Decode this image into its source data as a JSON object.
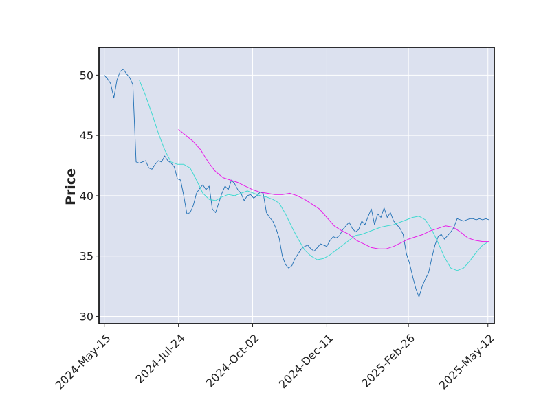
{
  "chart_data": {
    "type": "line",
    "title": "",
    "xlabel": "",
    "ylabel": "Price",
    "grid": true,
    "legend": "none",
    "xlim": [
      "2024-05-10",
      "2025-05-18"
    ],
    "ylim": [
      29.4,
      52.3
    ],
    "x_ticks": [
      "2024-May-15",
      "2024-Jul-24",
      "2024-Oct-02",
      "2024-Dec-11",
      "2025-Feb-26",
      "2025-May-12"
    ],
    "y_ticks": [
      30,
      35,
      40,
      45,
      50
    ],
    "colors": {
      "background": "#dce1ef",
      "grid": "#ffffff",
      "price": "#1f6fb4",
      "ma_short": "#40d9d0",
      "ma_long": "#e81ce8"
    },
    "series": [
      {
        "key": "price",
        "x": [
          "2024-05-15",
          "2024-05-18",
          "2024-05-21",
          "2024-05-24",
          "2024-05-27",
          "2024-05-30",
          "2024-06-02",
          "2024-06-05",
          "2024-06-08",
          "2024-06-11",
          "2024-06-14",
          "2024-06-17",
          "2024-06-20",
          "2024-06-23",
          "2024-06-26",
          "2024-06-29",
          "2024-07-02",
          "2024-07-05",
          "2024-07-08",
          "2024-07-11",
          "2024-07-14",
          "2024-07-17",
          "2024-07-20",
          "2024-07-23",
          "2024-07-26",
          "2024-07-29",
          "2024-08-01",
          "2024-08-04",
          "2024-08-07",
          "2024-08-10",
          "2024-08-13",
          "2024-08-16",
          "2024-08-19",
          "2024-08-22",
          "2024-08-25",
          "2024-08-28",
          "2024-08-31",
          "2024-09-03",
          "2024-09-06",
          "2024-09-09",
          "2024-09-12",
          "2024-09-15",
          "2024-09-18",
          "2024-09-21",
          "2024-09-24",
          "2024-09-27",
          "2024-09-30",
          "2024-10-03",
          "2024-10-06",
          "2024-10-09",
          "2024-10-12",
          "2024-10-15",
          "2024-10-18",
          "2024-10-21",
          "2024-10-24",
          "2024-10-27",
          "2024-10-30",
          "2024-11-02",
          "2024-11-05",
          "2024-11-08",
          "2024-11-11",
          "2024-11-14",
          "2024-11-17",
          "2024-11-20",
          "2024-11-23",
          "2024-11-26",
          "2024-11-29",
          "2024-12-02",
          "2024-12-05",
          "2024-12-08",
          "2024-12-11",
          "2024-12-14",
          "2024-12-17",
          "2024-12-20",
          "2024-12-23",
          "2024-12-26",
          "2024-12-29",
          "2025-01-01",
          "2025-01-04",
          "2025-01-07",
          "2025-01-10",
          "2025-01-13",
          "2025-01-16",
          "2025-01-19",
          "2025-01-22",
          "2025-01-25",
          "2025-01-28",
          "2025-01-31",
          "2025-02-03",
          "2025-02-06",
          "2025-02-09",
          "2025-02-12",
          "2025-02-15",
          "2025-02-18",
          "2025-02-21",
          "2025-02-24",
          "2025-02-27",
          "2025-03-02",
          "2025-03-05",
          "2025-03-08",
          "2025-03-11",
          "2025-03-14",
          "2025-03-17",
          "2025-03-20",
          "2025-03-23",
          "2025-03-26",
          "2025-03-29",
          "2025-04-01",
          "2025-04-04",
          "2025-04-07",
          "2025-04-10",
          "2025-04-13",
          "2025-04-16",
          "2025-04-19",
          "2025-04-22",
          "2025-04-25",
          "2025-04-28",
          "2025-05-01",
          "2025-05-04",
          "2025-05-07",
          "2025-05-10",
          "2025-05-13"
        ],
        "values": [
          50.0,
          49.7,
          49.3,
          48.1,
          49.6,
          50.3,
          50.5,
          50.1,
          49.8,
          49.2,
          42.8,
          42.7,
          42.8,
          42.9,
          42.3,
          42.2,
          42.6,
          42.9,
          42.8,
          43.3,
          42.9,
          42.7,
          42.4,
          41.4,
          41.3,
          40.0,
          38.5,
          38.6,
          39.2,
          40.2,
          40.6,
          40.9,
          40.5,
          40.8,
          38.9,
          38.6,
          39.4,
          40.2,
          40.8,
          40.5,
          41.3,
          41.0,
          40.5,
          40.2,
          39.6,
          40.0,
          40.1,
          39.8,
          40.0,
          40.3,
          40.2,
          38.6,
          38.2,
          37.9,
          37.3,
          36.5,
          35.0,
          34.3,
          34.0,
          34.2,
          34.8,
          35.2,
          35.6,
          35.8,
          35.9,
          35.6,
          35.4,
          35.7,
          36.0,
          35.9,
          35.8,
          36.3,
          36.6,
          36.5,
          36.7,
          37.2,
          37.5,
          37.8,
          37.3,
          37.0,
          37.2,
          37.9,
          37.6,
          38.3,
          38.9,
          37.6,
          38.5,
          38.2,
          39.0,
          38.2,
          38.6,
          37.9,
          37.6,
          37.3,
          36.8,
          35.2,
          34.4,
          33.3,
          32.3,
          31.6,
          32.5,
          33.1,
          33.6,
          34.8,
          35.9,
          36.6,
          36.8,
          36.4,
          36.7,
          37.0,
          37.4,
          38.1,
          38.0,
          37.9,
          38.0,
          38.1,
          38.1,
          38.0,
          38.1,
          38.0,
          38.1,
          38.0
        ]
      },
      {
        "key": "ma_short",
        "x": [
          "2024-06-17",
          "2024-06-23",
          "2024-06-29",
          "2024-07-05",
          "2024-07-11",
          "2024-07-17",
          "2024-07-23",
          "2024-07-29",
          "2024-08-04",
          "2024-08-10",
          "2024-08-16",
          "2024-08-22",
          "2024-08-28",
          "2024-09-03",
          "2024-09-09",
          "2024-09-15",
          "2024-09-21",
          "2024-09-27",
          "2024-10-03",
          "2024-10-09",
          "2024-10-15",
          "2024-10-21",
          "2024-10-27",
          "2024-11-02",
          "2024-11-08",
          "2024-11-14",
          "2024-11-20",
          "2024-11-26",
          "2024-12-02",
          "2024-12-08",
          "2024-12-14",
          "2024-12-20",
          "2024-12-26",
          "2025-01-01",
          "2025-01-07",
          "2025-01-13",
          "2025-01-19",
          "2025-01-25",
          "2025-01-31",
          "2025-02-06",
          "2025-02-12",
          "2025-02-18",
          "2025-02-24",
          "2025-03-02",
          "2025-03-08",
          "2025-03-14",
          "2025-03-20",
          "2025-03-26",
          "2025-04-01",
          "2025-04-07",
          "2025-04-13",
          "2025-04-19",
          "2025-04-25",
          "2025-05-01",
          "2025-05-07",
          "2025-05-13"
        ],
        "values": [
          49.6,
          48.3,
          46.8,
          45.2,
          43.8,
          42.8,
          42.6,
          42.6,
          42.3,
          41.3,
          40.2,
          39.7,
          39.6,
          39.9,
          40.1,
          40.0,
          40.2,
          40.4,
          40.2,
          40.0,
          39.9,
          39.7,
          39.4,
          38.5,
          37.4,
          36.4,
          35.5,
          35.0,
          34.7,
          34.8,
          35.1,
          35.5,
          35.9,
          36.3,
          36.7,
          36.8,
          37.0,
          37.2,
          37.4,
          37.5,
          37.6,
          37.8,
          38.0,
          38.2,
          38.3,
          38.0,
          37.2,
          36.1,
          34.9,
          34.0,
          33.8,
          34.0,
          34.6,
          35.3,
          35.9,
          36.2
        ]
      },
      {
        "key": "ma_long",
        "x": [
          "2024-07-24",
          "2024-07-31",
          "2024-08-07",
          "2024-08-14",
          "2024-08-21",
          "2024-08-28",
          "2024-09-04",
          "2024-09-11",
          "2024-09-18",
          "2024-09-25",
          "2024-10-02",
          "2024-10-09",
          "2024-10-16",
          "2024-10-23",
          "2024-10-30",
          "2024-11-06",
          "2024-11-13",
          "2024-11-20",
          "2024-11-27",
          "2024-12-04",
          "2024-12-11",
          "2024-12-18",
          "2024-12-25",
          "2025-01-01",
          "2025-01-08",
          "2025-01-15",
          "2025-01-22",
          "2025-01-29",
          "2025-02-05",
          "2025-02-12",
          "2025-02-19",
          "2025-02-26",
          "2025-03-05",
          "2025-03-12",
          "2025-03-19",
          "2025-03-26",
          "2025-04-02",
          "2025-04-09",
          "2025-04-16",
          "2025-04-23",
          "2025-04-30",
          "2025-05-07",
          "2025-05-13"
        ],
        "values": [
          45.5,
          45.0,
          44.5,
          43.8,
          42.8,
          42.0,
          41.5,
          41.3,
          41.1,
          40.8,
          40.5,
          40.3,
          40.2,
          40.1,
          40.1,
          40.2,
          40.0,
          39.7,
          39.3,
          38.9,
          38.2,
          37.5,
          37.1,
          36.8,
          36.3,
          36.0,
          35.7,
          35.6,
          35.6,
          35.8,
          36.1,
          36.4,
          36.6,
          36.8,
          37.1,
          37.3,
          37.5,
          37.4,
          37.0,
          36.5,
          36.3,
          36.2,
          36.2
        ]
      }
    ]
  }
}
